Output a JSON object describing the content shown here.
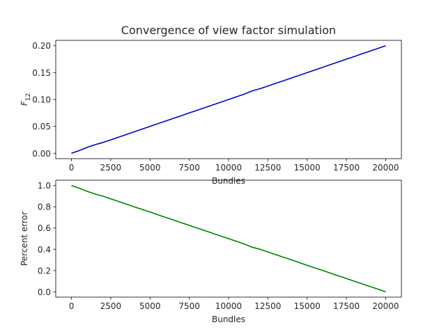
{
  "figure": {
    "title": "Convergence of view factor simulation"
  },
  "chart_data": [
    {
      "type": "line",
      "xlabel": "Bundles",
      "ylabel": "F_12",
      "xlim": [
        -1000,
        21000
      ],
      "ylim": [
        -0.01,
        0.21
      ],
      "xticks": [
        0,
        2500,
        5000,
        7500,
        10000,
        12500,
        15000,
        17500,
        20000
      ],
      "yticks": [
        0.0,
        0.05,
        0.1,
        0.15,
        0.2
      ],
      "ytick_labels": [
        "0.00",
        "0.05",
        "0.10",
        "0.15",
        "0.20"
      ],
      "grid": false,
      "series": [
        {
          "color": "#0000cc",
          "x": [
            0,
            500,
            1000,
            1500,
            2000,
            2500,
            3000,
            3500,
            4000,
            4500,
            5000,
            5500,
            6000,
            6500,
            7000,
            7500,
            8000,
            8500,
            9000,
            9500,
            10000,
            10500,
            11000,
            11500,
            12000,
            12500,
            13000,
            13500,
            14000,
            14500,
            15000,
            15500,
            16000,
            16500,
            17000,
            17500,
            18000,
            18500,
            19000,
            19500,
            20000
          ],
          "y": [
            0.0,
            0.005,
            0.011,
            0.016,
            0.02,
            0.025,
            0.03,
            0.035,
            0.04,
            0.045,
            0.05,
            0.055,
            0.06,
            0.065,
            0.07,
            0.075,
            0.08,
            0.085,
            0.09,
            0.095,
            0.1,
            0.105,
            0.11,
            0.116,
            0.12,
            0.125,
            0.13,
            0.135,
            0.14,
            0.145,
            0.15,
            0.155,
            0.16,
            0.165,
            0.17,
            0.175,
            0.18,
            0.185,
            0.19,
            0.195,
            0.2
          ]
        }
      ]
    },
    {
      "type": "line",
      "xlabel": "Bundles",
      "ylabel": "Percent error",
      "xlim": [
        -1000,
        21000
      ],
      "ylim": [
        -0.05,
        1.05
      ],
      "xticks": [
        0,
        2500,
        5000,
        7500,
        10000,
        12500,
        15000,
        17500,
        20000
      ],
      "yticks": [
        0.0,
        0.2,
        0.4,
        0.6,
        0.8,
        1.0
      ],
      "ytick_labels": [
        "0.0",
        "0.2",
        "0.4",
        "0.6",
        "0.8",
        "1.0"
      ],
      "grid": false,
      "series": [
        {
          "color": "#008000",
          "x": [
            0,
            500,
            1000,
            1500,
            2000,
            2500,
            3000,
            3500,
            4000,
            4500,
            5000,
            5500,
            6000,
            6500,
            7000,
            7500,
            8000,
            8500,
            9000,
            9500,
            10000,
            10500,
            11000,
            11500,
            12000,
            12500,
            13000,
            13500,
            14000,
            14500,
            15000,
            15500,
            16000,
            16500,
            17000,
            17500,
            18000,
            18500,
            19000,
            19500,
            20000
          ],
          "y": [
            1.0,
            0.975,
            0.945,
            0.92,
            0.9,
            0.875,
            0.85,
            0.825,
            0.8,
            0.775,
            0.75,
            0.725,
            0.7,
            0.675,
            0.65,
            0.625,
            0.6,
            0.575,
            0.55,
            0.525,
            0.5,
            0.475,
            0.45,
            0.42,
            0.4,
            0.375,
            0.35,
            0.325,
            0.3,
            0.275,
            0.25,
            0.225,
            0.2,
            0.175,
            0.15,
            0.125,
            0.1,
            0.075,
            0.05,
            0.025,
            0.0
          ]
        }
      ]
    }
  ]
}
